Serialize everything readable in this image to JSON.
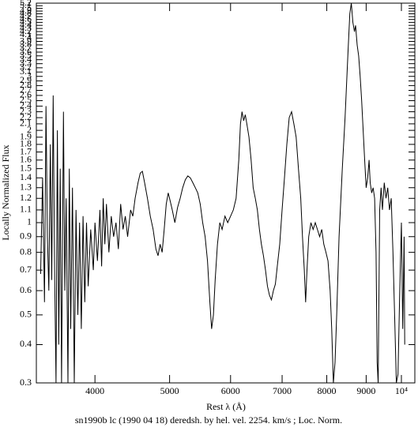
{
  "chart_data": {
    "type": "line",
    "title": "sn1990b lc (1990 04 18) deredsh. by hel. vel.  2254. km/s ;  Loc. Norm.",
    "x_label": "Rest λ (Å)",
    "y_label": "Locally Normalized Flux",
    "color": "#000000",
    "x_log": true,
    "y_log": true,
    "xlim": [
      3357,
      10410
    ],
    "ylim": [
      0.3,
      5.2
    ],
    "xticks": [
      4000,
      5000,
      6000,
      7000,
      8000,
      9000,
      {
        "value": 10000,
        "label": "10⁴"
      }
    ],
    "yticks": [
      0.3,
      0.4,
      0.5,
      0.6,
      0.7,
      0.8,
      0.9,
      1,
      1.1,
      1.2,
      1.3,
      1.4,
      1.5,
      1.6,
      1.7,
      1.8,
      1.9,
      2,
      2.1,
      2.2,
      2.3,
      2.4,
      2.5,
      2.6,
      2.7,
      2.8,
      2.9,
      3,
      3.1,
      3.2,
      3.3,
      3.4,
      3.5,
      3.6,
      3.7,
      3.8,
      3.9,
      4,
      4.1,
      4.2,
      4.3,
      4.4,
      4.5,
      4.6,
      4.7,
      4.8,
      4.9,
      5,
      5.1,
      5.2
    ],
    "x": [
      3400,
      3420,
      3440,
      3455,
      3470,
      3485,
      3500,
      3515,
      3530,
      3545,
      3560,
      3575,
      3590,
      3605,
      3620,
      3640,
      3655,
      3670,
      3690,
      3705,
      3720,
      3740,
      3760,
      3780,
      3800,
      3820,
      3840,
      3860,
      3880,
      3900,
      3920,
      3950,
      3980,
      4000,
      4030,
      4060,
      4080,
      4100,
      4120,
      4140,
      4170,
      4200,
      4230,
      4260,
      4290,
      4320,
      4350,
      4380,
      4410,
      4450,
      4480,
      4510,
      4550,
      4580,
      4610,
      4640,
      4680,
      4720,
      4760,
      4800,
      4830,
      4860,
      4890,
      4920,
      4950,
      4980,
      5000,
      5040,
      5080,
      5120,
      5160,
      5200,
      5240,
      5280,
      5320,
      5360,
      5400,
      5440,
      5480,
      5520,
      5560,
      5600,
      5640,
      5670,
      5700,
      5730,
      5770,
      5810,
      5850,
      5900,
      5950,
      6000,
      6050,
      6100,
      6150,
      6180,
      6210,
      6240,
      6270,
      6300,
      6340,
      6380,
      6420,
      6460,
      6500,
      6540,
      6580,
      6620,
      6660,
      6700,
      6740,
      6780,
      6820,
      6860,
      6900,
      6950,
      7000,
      7050,
      7100,
      7150,
      7200,
      7250,
      7300,
      7350,
      7400,
      7440,
      7480,
      7510,
      7540,
      7580,
      7630,
      7680,
      7730,
      7780,
      7830,
      7880,
      7930,
      7980,
      8030,
      8080,
      8120,
      8160,
      8200,
      8240,
      8300,
      8380,
      8450,
      8520,
      8570,
      8610,
      8650,
      8690,
      8720,
      8760,
      8800,
      8840,
      8880,
      8920,
      8960,
      9000,
      9040,
      9080,
      9110,
      9150,
      9190,
      9230,
      9270,
      9300,
      9330,
      9370,
      9410,
      9450,
      9500,
      9550,
      9600,
      9650,
      9700,
      9750,
      9800,
      9850,
      9900,
      9950,
      10000,
      10040,
      10080,
      10100
    ],
    "values": [
      0.68,
      1.4,
      0.55,
      2.4,
      0.9,
      0.6,
      1.8,
      0.65,
      2.6,
      0.7,
      0.3,
      2.0,
      0.4,
      1.5,
      0.3,
      2.3,
      0.6,
      1.2,
      0.3,
      1.5,
      0.45,
      1.3,
      0.3,
      1.1,
      0.5,
      1.0,
      0.45,
      1.05,
      0.55,
      1.0,
      0.62,
      0.95,
      0.7,
      1.0,
      0.75,
      1.1,
      0.72,
      1.2,
      0.85,
      1.15,
      0.8,
      1.05,
      0.9,
      1.0,
      0.82,
      1.15,
      0.95,
      1.05,
      0.9,
      1.1,
      1.05,
      1.2,
      1.35,
      1.45,
      1.47,
      1.35,
      1.2,
      1.05,
      0.95,
      0.82,
      0.78,
      0.85,
      0.8,
      0.95,
      1.15,
      1.25,
      1.2,
      1.1,
      1.0,
      1.12,
      1.2,
      1.3,
      1.38,
      1.42,
      1.4,
      1.35,
      1.3,
      1.25,
      1.15,
      1.0,
      0.9,
      0.75,
      0.55,
      0.45,
      0.5,
      0.65,
      0.85,
      1.0,
      0.95,
      1.05,
      1.0,
      1.05,
      1.1,
      1.2,
      1.6,
      2.1,
      2.3,
      2.15,
      2.25,
      2.1,
      1.9,
      1.6,
      1.3,
      1.2,
      1.1,
      0.95,
      0.85,
      0.78,
      0.7,
      0.62,
      0.58,
      0.56,
      0.6,
      0.63,
      0.72,
      0.85,
      1.1,
      1.4,
      1.8,
      2.2,
      2.3,
      2.1,
      1.9,
      1.5,
      1.2,
      0.9,
      0.7,
      0.55,
      0.7,
      0.9,
      1.0,
      0.95,
      1.0,
      0.95,
      0.9,
      0.95,
      0.85,
      0.8,
      0.75,
      0.6,
      0.45,
      0.3,
      0.35,
      0.5,
      0.9,
      1.5,
      2.2,
      3.5,
      4.8,
      5.2,
      4.5,
      4.2,
      4.4,
      3.8,
      3.5,
      3.0,
      2.5,
      2.0,
      1.6,
      1.3,
      1.4,
      1.6,
      1.35,
      1.25,
      1.3,
      1.2,
      0.8,
      0.35,
      0.3,
      1.1,
      1.3,
      1.1,
      1.35,
      1.2,
      1.3,
      1.1,
      1.2,
      0.8,
      0.5,
      0.3,
      0.32,
      0.6,
      1.0,
      0.45,
      0.9,
      0.4
    ]
  }
}
